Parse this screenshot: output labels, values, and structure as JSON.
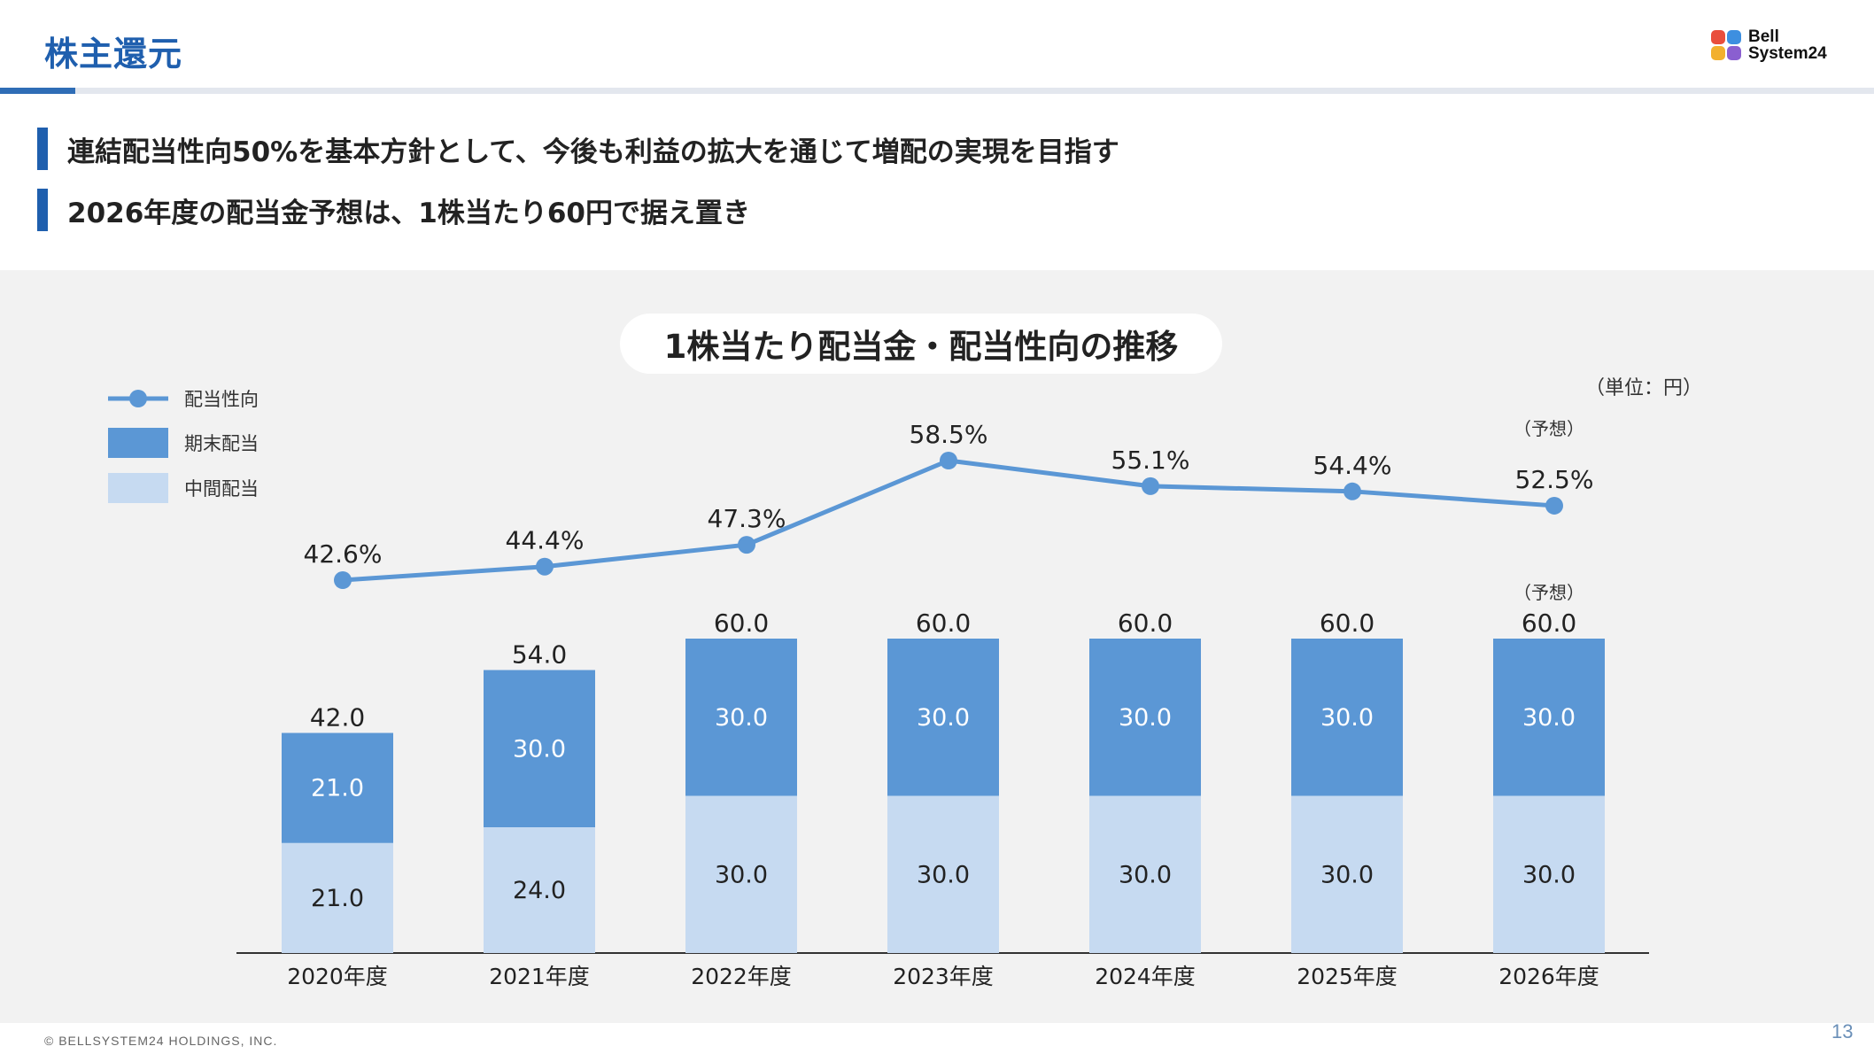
{
  "header": {
    "title": "株主還元"
  },
  "logo": {
    "line1": "Bell",
    "line2": "System24",
    "colors": [
      "#e94e3c",
      "#3d8fe0",
      "#f2b02e",
      "#8a5fd0"
    ]
  },
  "bullets": [
    "連結配当性向50%を基本方針として、今後も利益の拡大を通じて増配の実現を目指す",
    "2026年度の配当金予想は、1株当たり60円で据え置き"
  ],
  "chart_title": "1株当たり配当金・配当性向の推移",
  "unit_label": "（単位：円）",
  "legend": {
    "payout_ratio": "配当性向",
    "year_end": "期末配当",
    "interim": "中間配当"
  },
  "chart_data": {
    "type": "bar",
    "stacked": true,
    "categories": [
      "2020年度",
      "2021年度",
      "2022年度",
      "2023年度",
      "2024年度",
      "2025年度",
      "2026年度"
    ],
    "series": [
      {
        "name": "中間配当",
        "values": [
          21.0,
          24.0,
          30.0,
          30.0,
          30.0,
          30.0,
          30.0
        ],
        "labels": [
          "21.0",
          "24.0",
          "30.0",
          "30.0",
          "30.0",
          "30.0",
          "30.0"
        ],
        "color": "#c6daf1"
      },
      {
        "name": "期末配当",
        "values": [
          21.0,
          30.0,
          30.0,
          30.0,
          30.0,
          30.0,
          30.0
        ],
        "labels": [
          "21.0",
          "30.0",
          "30.0",
          "30.0",
          "30.0",
          "30.0",
          "30.0"
        ],
        "color": "#5b97d5"
      }
    ],
    "totals": [
      42.0,
      54.0,
      60.0,
      60.0,
      60.0,
      60.0,
      60.0
    ],
    "total_labels": [
      "42.0",
      "54.0",
      "60.0",
      "60.0",
      "60.0",
      "60.0",
      "60.0"
    ],
    "line": {
      "name": "配当性向",
      "values": [
        42.6,
        44.4,
        47.3,
        58.5,
        55.1,
        54.4,
        52.5
      ],
      "labels": [
        "42.6%",
        "44.4%",
        "47.3%",
        "58.5%",
        "55.1%",
        "54.4%",
        "52.5%"
      ],
      "color": "#5b97d5"
    },
    "forecast_note": "（予想）",
    "forecast_index": 6,
    "ylim_bar": [
      0,
      60
    ],
    "ylim_line": [
      42.6,
      58.5
    ],
    "grid": false,
    "legend_position": "top-left"
  },
  "footer": {
    "copyright": "© BELLSYSTEM24 HOLDINGS, INC.",
    "page": "13"
  }
}
